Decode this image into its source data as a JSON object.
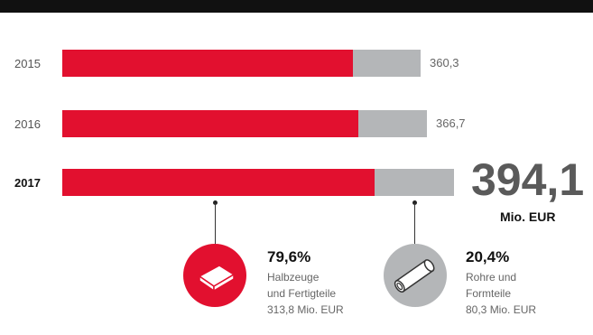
{
  "colors": {
    "red": "#e2102f",
    "grey": "#b4b6b8",
    "dark": "#111111"
  },
  "chart_data": {
    "type": "bar",
    "orientation": "horizontal",
    "stacked": true,
    "categories": [
      "2015",
      "2016",
      "2017"
    ],
    "totals": [
      "360,3",
      "366,7",
      "394,1"
    ],
    "total_values": [
      360.3,
      366.7,
      394.1
    ],
    "series": [
      {
        "values": [
          292.0,
          298.0,
          313.8
        ]
      },
      {
        "values": [
          68.3,
          68.7,
          80.3
        ]
      }
    ],
    "unit": "Mio. EUR"
  },
  "segments": [
    {
      "icon": "sheet-metal-icon",
      "percent": "79,6%",
      "line1": "Halbzeuge",
      "line2": "und Fertigteile",
      "amount": "313,8 Mio. EUR"
    },
    {
      "icon": "tube-icon",
      "percent": "20,4%",
      "line1": "Rohre und",
      "line2": "Formteile",
      "amount": "80,3 Mio. EUR"
    }
  ]
}
